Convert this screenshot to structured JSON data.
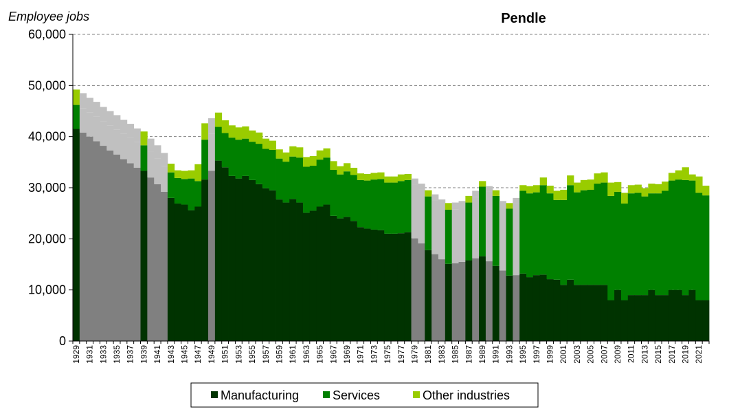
{
  "chart_data": {
    "type": "bar",
    "stacked": true,
    "title": "Pendle",
    "ylabel": "Employee jobs",
    "ylim": [
      0,
      60000
    ],
    "yticks": [
      "0",
      "10,000",
      "20,000",
      "30,000",
      "40,000",
      "50,000",
      "60,000"
    ],
    "ytick_values": [
      0,
      10000,
      20000,
      30000,
      40000,
      50000,
      60000
    ],
    "grid": "horizontal dashed",
    "legend_position": "bottom",
    "x": [
      1929,
      1930,
      1931,
      1932,
      1933,
      1934,
      1935,
      1936,
      1937,
      1938,
      1939,
      1940,
      1941,
      1942,
      1943,
      1944,
      1945,
      1946,
      1947,
      1948,
      1949,
      1950,
      1951,
      1952,
      1953,
      1954,
      1955,
      1956,
      1957,
      1958,
      1959,
      1960,
      1961,
      1962,
      1963,
      1964,
      1965,
      1966,
      1967,
      1968,
      1969,
      1970,
      1971,
      1972,
      1973,
      1974,
      1975,
      1976,
      1977,
      1978,
      1979,
      1980,
      1981,
      1982,
      1983,
      1984,
      1985,
      1986,
      1987,
      1988,
      1989,
      1990,
      1991,
      1992,
      1993,
      1994,
      1995,
      1996,
      1997,
      1998,
      1999,
      2000,
      2001,
      2002,
      2003,
      2004,
      2005,
      2006,
      2007,
      2008,
      2009,
      2010,
      2011,
      2012,
      2013,
      2014,
      2015,
      2016,
      2017,
      2018,
      2019,
      2020,
      2021,
      2022
    ],
    "xtick_labels": [
      "1929",
      "1931",
      "1933",
      "1935",
      "1937",
      "1939",
      "1941",
      "1943",
      "1945",
      "1947",
      "1949",
      "1951",
      "1953",
      "1955",
      "1957",
      "1959",
      "1961",
      "1963",
      "1965",
      "1967",
      "1969",
      "1971",
      "1973",
      "1975",
      "1977",
      "1979",
      "1981",
      "1983",
      "1985",
      "1987",
      "1989",
      "1991",
      "1993",
      "1995",
      "1997",
      "1999",
      "2001",
      "2003",
      "2005",
      "2007",
      "2009",
      "2011",
      "2013",
      "2015",
      "2017",
      "2019",
      "2021"
    ],
    "estimated_years": [
      1930,
      1931,
      1932,
      1933,
      1934,
      1935,
      1936,
      1937,
      1938,
      1940,
      1941,
      1942,
      1949,
      1979,
      1980,
      1982,
      1983,
      1985,
      1986,
      1988,
      1990,
      1992,
      1994
    ],
    "colors": {
      "Manufacturing": "#003300",
      "Services": "#008000",
      "Other industries": "#99CC00",
      "estimated_base": "#808080",
      "estimated_top": "#C0C0C0"
    },
    "series": [
      {
        "name": "Manufacturing",
        "values": [
          41500,
          40800,
          40000,
          39100,
          38200,
          37300,
          36500,
          35600,
          34800,
          33900,
          33300,
          32000,
          30700,
          29200,
          28000,
          26900,
          26700,
          25600,
          26300,
          31600,
          33300,
          35300,
          34000,
          32300,
          31800,
          32300,
          31500,
          30700,
          29900,
          29500,
          27700,
          27100,
          27800,
          27100,
          25100,
          25500,
          26300,
          26700,
          24500,
          24000,
          24300,
          23500,
          22300,
          22000,
          21800,
          21700,
          21000,
          21000,
          21100,
          21300,
          20100,
          19100,
          17800,
          17000,
          16000,
          15100,
          15200,
          15500,
          15800,
          16200,
          16600,
          15600,
          14700,
          13800,
          12800,
          12900,
          13200,
          12500,
          12900,
          13000,
          12100,
          12000,
          11000,
          12000,
          11000,
          11000,
          11000,
          11000,
          11000,
          8000,
          10000,
          8000,
          9000,
          9000,
          9000,
          10000,
          9000,
          9000,
          10000,
          10000,
          9000,
          10000,
          8000,
          8000
        ]
      },
      {
        "name": "Services",
        "values": [
          4700,
          4700,
          4700,
          4800,
          4800,
          4900,
          4900,
          5000,
          5000,
          5000,
          5000,
          5000,
          5000,
          5000,
          5000,
          5000,
          5000,
          6200,
          5000,
          7800,
          7300,
          6600,
          6700,
          7500,
          7600,
          7300,
          7500,
          7900,
          7700,
          7900,
          8000,
          8000,
          8300,
          8800,
          9000,
          8800,
          9200,
          9200,
          9000,
          8600,
          8900,
          9000,
          9200,
          9400,
          9800,
          10000,
          10000,
          10000,
          10200,
          10200,
          10500,
          10500,
          10500,
          10500,
          10500,
          10600,
          10600,
          10600,
          11300,
          12000,
          13600,
          13600,
          13700,
          12500,
          13100,
          14000,
          16200,
          16400,
          16200,
          17500,
          16800,
          15600,
          16600,
          18500,
          18100,
          18500,
          18600,
          19800,
          20000,
          20400,
          19200,
          18900,
          19900,
          20000,
          19300,
          18900,
          19900,
          20400,
          21400,
          21600,
          22500,
          21400,
          21000,
          20500
        ]
      },
      {
        "name": "Other industries",
        "values": [
          3000,
          3000,
          2900,
          2900,
          2800,
          2800,
          2800,
          2700,
          2700,
          2700,
          2700,
          2600,
          2600,
          2600,
          1700,
          1500,
          1600,
          1600,
          3300,
          3200,
          3000,
          2800,
          2500,
          2400,
          2400,
          2400,
          2200,
          2200,
          2000,
          1800,
          1800,
          1800,
          2000,
          2000,
          1900,
          1900,
          1800,
          1800,
          1700,
          1600,
          1600,
          1400,
          1300,
          1300,
          1300,
          1300,
          1200,
          1200,
          1300,
          1200,
          1200,
          1200,
          1200,
          1200,
          1200,
          1300,
          1300,
          1300,
          1300,
          1200,
          1100,
          1100,
          1100,
          1100,
          1100,
          1100,
          1100,
          1400,
          1400,
          1500,
          1500,
          1800,
          2000,
          1900,
          1900,
          2000,
          2000,
          2000,
          2000,
          2600,
          1900,
          2100,
          1600,
          1600,
          1600,
          1900,
          1800,
          1800,
          1500,
          1800,
          2500,
          1200,
          3200,
          1900
        ]
      }
    ]
  }
}
